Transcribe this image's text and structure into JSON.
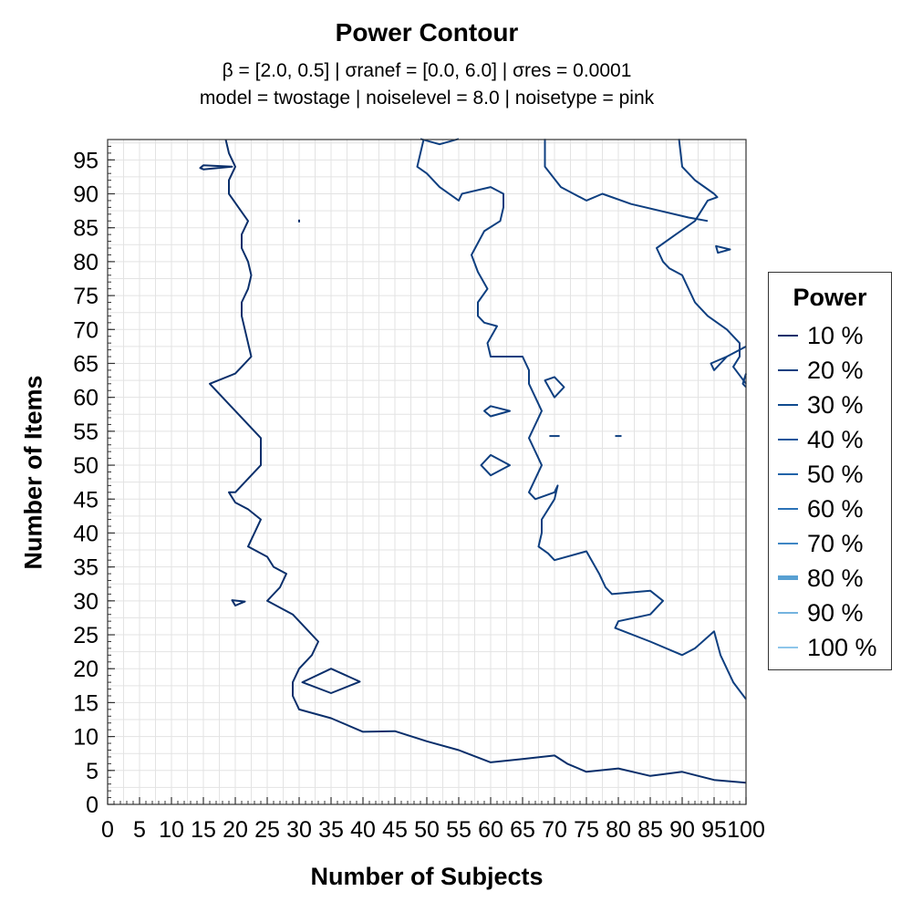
{
  "title": "Power Contour",
  "subtitle_lines": [
    "β = [2.0, 0.5]   |   σranef = [0.0, 6.0]   |   σres = 0.0001",
    "model = twostage   |   noiselevel = 8.0   |   noisetype = pink"
  ],
  "chart_data": {
    "type": "contour",
    "title": "Power Contour",
    "xlabel": "Number of Subjects",
    "ylabel": "Number of Items",
    "xlim": [
      0,
      100
    ],
    "ylim": [
      0,
      98
    ],
    "x_ticks": [
      0,
      5,
      10,
      15,
      20,
      25,
      30,
      35,
      40,
      45,
      50,
      55,
      60,
      65,
      70,
      75,
      80,
      85,
      90,
      95,
      100
    ],
    "y_ticks": [
      0,
      5,
      10,
      15,
      20,
      25,
      30,
      35,
      40,
      45,
      50,
      55,
      60,
      65,
      70,
      75,
      80,
      85,
      90,
      95
    ],
    "grid": true,
    "legend": {
      "title": "Power",
      "placement": "right",
      "entries": [
        "10 %",
        "20 %",
        "30 %",
        "40 %",
        "50 %",
        "60 %",
        "70 %",
        "80 %",
        "90 %",
        "100 %"
      ],
      "colors": [
        "#0a2f6b",
        "#0e3f80",
        "#104a8e",
        "#17569b",
        "#2163a8",
        "#2b72b6",
        "#3f86c4",
        "#58a0d2",
        "#74b3df",
        "#8ec6ea"
      ]
    },
    "contours": [
      {
        "level": "10 %",
        "points": [
          [
            18.5,
            98
          ],
          [
            19,
            96
          ],
          [
            20,
            94
          ],
          [
            19,
            92
          ],
          [
            19,
            90
          ],
          [
            20.5,
            88
          ],
          [
            22,
            86
          ],
          [
            21,
            84
          ],
          [
            21,
            82
          ],
          [
            22,
            80
          ],
          [
            22.5,
            78
          ],
          [
            22,
            76
          ],
          [
            21,
            74
          ],
          [
            21,
            72
          ],
          [
            21.5,
            70
          ],
          [
            22,
            68
          ],
          [
            22.5,
            66
          ],
          [
            21,
            64.5
          ],
          [
            20,
            63.5
          ],
          [
            16,
            62
          ],
          [
            18,
            60
          ],
          [
            20,
            58
          ],
          [
            22,
            56
          ],
          [
            24,
            54
          ],
          [
            24,
            52
          ],
          [
            24,
            50
          ],
          [
            22,
            48
          ],
          [
            20,
            46
          ],
          [
            19,
            46
          ],
          [
            20,
            44.5
          ],
          [
            22,
            43.5
          ],
          [
            24,
            42
          ],
          [
            23,
            40
          ],
          [
            22,
            38
          ],
          [
            25,
            36.5
          ],
          [
            26,
            35
          ],
          [
            28,
            34
          ],
          [
            27,
            32
          ],
          [
            25,
            30
          ],
          [
            27,
            29
          ],
          [
            29,
            28
          ],
          [
            31,
            26
          ],
          [
            33,
            24
          ],
          [
            32,
            22
          ],
          [
            30,
            20
          ],
          [
            29,
            18
          ],
          [
            29,
            16
          ],
          [
            30,
            14
          ],
          [
            35,
            12.7
          ],
          [
            40,
            10.7
          ],
          [
            45,
            10.8
          ],
          [
            50,
            9.3
          ],
          [
            55,
            8
          ],
          [
            60,
            6.2
          ],
          [
            65,
            6.7
          ],
          [
            70,
            7.2
          ],
          [
            72,
            6
          ],
          [
            75,
            4.8
          ],
          [
            80,
            5.3
          ],
          [
            85,
            4.2
          ],
          [
            90,
            4.8
          ],
          [
            95,
            3.6
          ],
          [
            100,
            3.2
          ]
        ]
      },
      {
        "level": "10 %",
        "points": [
          [
            15,
            94.2
          ],
          [
            14.5,
            93.8
          ],
          [
            15,
            93.6
          ],
          [
            19.5,
            94
          ]
        ],
        "closed": true
      },
      {
        "level": "10 %",
        "points": [
          [
            19.5,
            30.1
          ],
          [
            21.5,
            29.9
          ],
          [
            20,
            29.3
          ]
        ],
        "closed": true
      },
      {
        "level": "10 %",
        "points": [
          [
            30,
            86.2
          ],
          [
            30,
            85.8
          ]
        ]
      },
      {
        "level": "10 %",
        "points": [
          [
            30.5,
            18
          ],
          [
            35,
            20
          ],
          [
            39.5,
            18.1
          ],
          [
            35,
            16.4
          ]
        ],
        "closed": true
      },
      {
        "level": "20 %",
        "points": [
          [
            49.5,
            98
          ],
          [
            49,
            96
          ],
          [
            48.5,
            94
          ],
          [
            50,
            93
          ],
          [
            52,
            91
          ],
          [
            55,
            89
          ],
          [
            55.5,
            90
          ],
          [
            60,
            91
          ],
          [
            62,
            90
          ],
          [
            62,
            88
          ],
          [
            61.5,
            86
          ],
          [
            59,
            84.5
          ],
          [
            57,
            81
          ],
          [
            58,
            78.5
          ],
          [
            59.5,
            76
          ],
          [
            58,
            74
          ],
          [
            58,
            72
          ],
          [
            59,
            71
          ],
          [
            61,
            70.5
          ],
          [
            59.5,
            68
          ],
          [
            60,
            66
          ],
          [
            63,
            66
          ],
          [
            65,
            66
          ],
          [
            66,
            64
          ],
          [
            66,
            62
          ],
          [
            67,
            60
          ],
          [
            68,
            58
          ],
          [
            67,
            56
          ],
          [
            66,
            54
          ],
          [
            67,
            52
          ],
          [
            68,
            50
          ],
          [
            67,
            48
          ],
          [
            66,
            46
          ],
          [
            67,
            45
          ],
          [
            70,
            46
          ],
          [
            70.5,
            47
          ],
          [
            70,
            45
          ],
          [
            68,
            42
          ],
          [
            68,
            40
          ],
          [
            67.5,
            38
          ],
          [
            69,
            37
          ],
          [
            70,
            36
          ],
          [
            75,
            37.3
          ],
          [
            77,
            34
          ],
          [
            78,
            32
          ],
          [
            79,
            31
          ],
          [
            85,
            31.5
          ],
          [
            87,
            30
          ],
          [
            85,
            28
          ],
          [
            80,
            27
          ],
          [
            79.5,
            26
          ],
          [
            85,
            24
          ],
          [
            90,
            22
          ],
          [
            92,
            23
          ],
          [
            95,
            25.5
          ],
          [
            96,
            22
          ],
          [
            98,
            18
          ],
          [
            100,
            15.5
          ]
        ]
      },
      {
        "level": "20 %",
        "points": [
          [
            49,
            98.1
          ],
          [
            52,
            97.3
          ],
          [
            55,
            98.1
          ]
        ]
      },
      {
        "level": "20 %",
        "points": [
          [
            68.5,
            98.1
          ],
          [
            68.5,
            96
          ],
          [
            68.5,
            94
          ],
          [
            71,
            91
          ],
          [
            75,
            89
          ],
          [
            77.5,
            90
          ],
          [
            82,
            88.5
          ],
          [
            91,
            86.5
          ],
          [
            94,
            86
          ]
        ]
      },
      {
        "level": "20 %",
        "points": [
          [
            100,
            67.5
          ],
          [
            97,
            66
          ],
          [
            95,
            64
          ],
          [
            94.5,
            65
          ],
          [
            97,
            66
          ],
          [
            99,
            67
          ]
        ]
      },
      {
        "level": "20 %",
        "points": [
          [
            68.5,
            62.5
          ],
          [
            70,
            63
          ],
          [
            71.5,
            61.5
          ],
          [
            70,
            60
          ]
        ],
        "closed": true
      },
      {
        "level": "20 %",
        "points": [
          [
            59,
            58
          ],
          [
            60,
            58.7
          ],
          [
            63,
            58
          ],
          [
            60,
            57.2
          ]
        ],
        "closed": true
      },
      {
        "level": "20 %",
        "points": [
          [
            58.5,
            50
          ],
          [
            60,
            51.5
          ],
          [
            63,
            50
          ],
          [
            60,
            48.5
          ]
        ],
        "closed": true
      },
      {
        "level": "20 %",
        "points": [
          [
            69.2,
            54.3
          ],
          [
            70.8,
            54.3
          ]
        ]
      },
      {
        "level": "20 %",
        "points": [
          [
            79.5,
            54.3
          ],
          [
            80.5,
            54.3
          ]
        ]
      },
      {
        "level": "20 %",
        "points": [
          [
            95.3,
            82.3
          ],
          [
            97.5,
            81.8
          ],
          [
            95.6,
            81.3
          ]
        ],
        "closed": true
      },
      {
        "level": "20 %",
        "points": [
          [
            89.5,
            98.1
          ],
          [
            90,
            94
          ],
          [
            92,
            92
          ],
          [
            95,
            90
          ],
          [
            95.5,
            89.5
          ],
          [
            94,
            89
          ],
          [
            92,
            86
          ],
          [
            89,
            84
          ],
          [
            86,
            82
          ],
          [
            87,
            80
          ],
          [
            88,
            79
          ],
          [
            90,
            78
          ],
          [
            91,
            76
          ],
          [
            92,
            74
          ],
          [
            94,
            72
          ],
          [
            97,
            70
          ],
          [
            99,
            68
          ],
          [
            99,
            66
          ],
          [
            98,
            64.5
          ],
          [
            100,
            62
          ]
        ]
      },
      {
        "level": "20 %",
        "points": [
          [
            100,
            63.5
          ],
          [
            99.5,
            62
          ],
          [
            100,
            61.5
          ]
        ]
      }
    ]
  }
}
